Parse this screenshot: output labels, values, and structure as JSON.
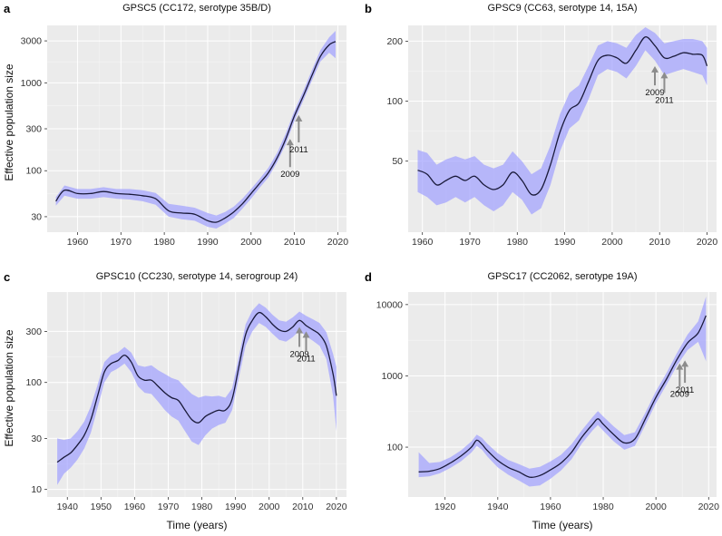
{
  "figure": {
    "shared_ylabel": "Effective population size",
    "shared_xlabel": "Time (years)"
  },
  "chart_data": [
    {
      "id": "a",
      "letter": "a",
      "type": "line",
      "title": "GPSC5 (CC172, serotype 35B/D)",
      "xlabel": "",
      "ylabel": "Effective population size",
      "yscale": "log",
      "xlim": [
        1953,
        2022
      ],
      "ylim": [
        20,
        4500
      ],
      "xticks": [
        1960,
        1970,
        1980,
        1990,
        2000,
        2010,
        2020
      ],
      "yticks": [
        30,
        100,
        300,
        1000,
        3000
      ],
      "ytick_labels": [
        "30",
        "100",
        "300",
        "1000",
        "3000"
      ],
      "x": [
        1955,
        1957,
        1960,
        1963,
        1966,
        1969,
        1972,
        1975,
        1978,
        1981,
        1984,
        1987,
        1990,
        1992,
        1994,
        1996,
        1998,
        2000,
        2002,
        2004,
        2006,
        2008,
        2010,
        2012,
        2014,
        2016,
        2018,
        2019.5
      ],
      "median": [
        45,
        60,
        55,
        55,
        58,
        55,
        54,
        52,
        48,
        35,
        33,
        32,
        27,
        26,
        29,
        34,
        42,
        55,
        72,
        95,
        140,
        230,
        420,
        700,
        1200,
        2000,
        2700,
        2950
      ],
      "lower": [
        40,
        52,
        48,
        48,
        50,
        48,
        47,
        45,
        41,
        30,
        28,
        27,
        23,
        22,
        25,
        29,
        37,
        48,
        64,
        84,
        125,
        200,
        370,
        620,
        1050,
        1750,
        2200,
        1900
      ],
      "upper": [
        50,
        68,
        62,
        62,
        65,
        62,
        62,
        60,
        56,
        42,
        40,
        38,
        33,
        31,
        34,
        39,
        48,
        62,
        81,
        108,
        160,
        265,
        480,
        800,
        1380,
        2350,
        3300,
        3900
      ],
      "annotations": [
        {
          "label": "2009",
          "year": 2009,
          "tip_value": 230,
          "tail_value": 110,
          "label_side": "below"
        },
        {
          "label": "2011",
          "year": 2011,
          "tip_value": 430,
          "tail_value": 210,
          "label_side": "below"
        }
      ]
    },
    {
      "id": "b",
      "letter": "b",
      "type": "line",
      "title": "GPSC9 (CC63, serotype 14, 15A)",
      "xlabel": "",
      "ylabel": "",
      "yscale": "log",
      "xlim": [
        1957,
        2022
      ],
      "ylim": [
        22,
        240
      ],
      "xticks": [
        1960,
        1970,
        1980,
        1990,
        2000,
        2010,
        2020
      ],
      "yticks": [
        50,
        100,
        200
      ],
      "ytick_labels": [
        "50",
        "100",
        "200"
      ],
      "x": [
        1959,
        1961,
        1963,
        1965,
        1967,
        1969,
        1971,
        1973,
        1975,
        1977,
        1979,
        1981,
        1983,
        1985,
        1987,
        1989,
        1991,
        1993,
        1995,
        1997,
        1999,
        2001,
        2003,
        2005,
        2007,
        2009,
        2011,
        2013,
        2015,
        2017,
        2019,
        2020
      ],
      "median": [
        45,
        43,
        38,
        40,
        42,
        40,
        42,
        38,
        36,
        38,
        44,
        40,
        34,
        36,
        48,
        70,
        90,
        98,
        125,
        160,
        170,
        165,
        155,
        180,
        210,
        190,
        165,
        168,
        175,
        172,
        170,
        150
      ],
      "lower": [
        35,
        33,
        30,
        31,
        33,
        31,
        33,
        30,
        28,
        30,
        35,
        32,
        27,
        29,
        38,
        56,
        73,
        80,
        102,
        135,
        145,
        140,
        130,
        150,
        180,
        160,
        135,
        140,
        145,
        140,
        135,
        120
      ],
      "upper": [
        57,
        55,
        48,
        51,
        53,
        51,
        53,
        48,
        46,
        48,
        56,
        50,
        43,
        46,
        60,
        86,
        110,
        120,
        150,
        190,
        200,
        195,
        185,
        215,
        235,
        220,
        195,
        200,
        205,
        205,
        200,
        185
      ],
      "annotations": [
        {
          "label": "2009",
          "year": 2009,
          "tip_value": 150,
          "tail_value": 120,
          "label_side": "below"
        },
        {
          "label": "2011",
          "year": 2011,
          "tip_value": 140,
          "tail_value": 110,
          "label_side": "below"
        }
      ]
    },
    {
      "id": "c",
      "letter": "c",
      "type": "line",
      "title": "GPSC10 (CC230, serotype 14, serogroup 24)",
      "xlabel": "Time (years)",
      "ylabel": "Effective population size",
      "yscale": "log",
      "xlim": [
        1934,
        2023
      ],
      "ylim": [
        8.5,
        700
      ],
      "xticks": [
        1940,
        1950,
        1960,
        1970,
        1980,
        1990,
        2000,
        2010,
        2020
      ],
      "yticks": [
        10,
        30,
        100,
        300
      ],
      "ytick_labels": [
        "10",
        "30",
        "100",
        "300"
      ],
      "x": [
        1937,
        1939,
        1941,
        1943,
        1945,
        1947,
        1949,
        1951,
        1953,
        1955,
        1957,
        1959,
        1961,
        1963,
        1965,
        1967,
        1969,
        1971,
        1973,
        1975,
        1977,
        1979,
        1981,
        1983,
        1985,
        1987,
        1989,
        1991,
        1993,
        1995,
        1997,
        1999,
        2001,
        2003,
        2005,
        2007,
        2009,
        2011,
        2013,
        2015,
        2017,
        2019,
        2020
      ],
      "median": [
        18,
        20,
        22,
        26,
        32,
        45,
        75,
        125,
        150,
        160,
        180,
        155,
        115,
        105,
        105,
        92,
        80,
        72,
        68,
        55,
        45,
        42,
        48,
        52,
        55,
        55,
        70,
        140,
        280,
        380,
        450,
        410,
        350,
        310,
        300,
        330,
        380,
        340,
        310,
        280,
        220,
        120,
        75
      ],
      "lower": [
        11,
        14,
        16,
        19,
        24,
        34,
        58,
        100,
        125,
        135,
        150,
        125,
        92,
        80,
        78,
        66,
        55,
        48,
        44,
        35,
        28,
        26,
        32,
        37,
        40,
        42,
        55,
        110,
        220,
        300,
        360,
        330,
        285,
        250,
        240,
        265,
        305,
        270,
        245,
        220,
        165,
        75,
        35
      ],
      "upper": [
        30,
        29,
        30,
        35,
        43,
        60,
        95,
        155,
        180,
        190,
        215,
        190,
        145,
        140,
        145,
        130,
        120,
        110,
        105,
        90,
        78,
        72,
        75,
        74,
        75,
        72,
        88,
        175,
        350,
        470,
        550,
        500,
        430,
        380,
        370,
        405,
        460,
        420,
        390,
        360,
        295,
        185,
        140
      ],
      "annotations": [
        {
          "label": "2009",
          "year": 2009,
          "tip_value": 330,
          "tail_value": 215,
          "label_side": "below"
        },
        {
          "label": "2011",
          "year": 2011,
          "tip_value": 300,
          "tail_value": 195,
          "label_side": "below"
        }
      ]
    },
    {
      "id": "d",
      "letter": "d",
      "type": "line",
      "title": "GPSC17 (CC2062, serotype 19A)",
      "xlabel": "Time (years)",
      "ylabel": "",
      "yscale": "log",
      "xlim": [
        1906,
        2023
      ],
      "ylim": [
        20,
        15000
      ],
      "xticks": [
        1920,
        1940,
        1960,
        1980,
        2000,
        2020
      ],
      "yticks": [
        100,
        1000,
        10000
      ],
      "ytick_labels": [
        "100",
        "1000",
        "10000"
      ],
      "x": [
        1910,
        1914,
        1918,
        1922,
        1926,
        1930,
        1932,
        1934,
        1936,
        1940,
        1944,
        1948,
        1952,
        1956,
        1960,
        1964,
        1968,
        1972,
        1976,
        1978,
        1980,
        1984,
        1988,
        1992,
        1996,
        2000,
        2004,
        2008,
        2012,
        2016,
        2019
      ],
      "median": [
        45,
        46,
        50,
        60,
        75,
        100,
        125,
        110,
        90,
        65,
        52,
        45,
        38,
        40,
        48,
        60,
        85,
        140,
        210,
        250,
        210,
        150,
        115,
        130,
        250,
        500,
        900,
        1700,
        2900,
        4000,
        7000
      ],
      "lower": [
        38,
        39,
        43,
        51,
        63,
        84,
        104,
        92,
        74,
        52,
        41,
        34,
        28,
        29,
        36,
        47,
        68,
        114,
        172,
        205,
        170,
        120,
        92,
        104,
        205,
        415,
        750,
        1400,
        2300,
        3000,
        1600
      ],
      "upper": [
        85,
        60,
        62,
        72,
        90,
        120,
        150,
        135,
        112,
        82,
        66,
        58,
        50,
        53,
        63,
        78,
        110,
        175,
        265,
        320,
        270,
        195,
        148,
        162,
        305,
        610,
        1100,
        2100,
        3800,
        5800,
        13000
      ],
      "annotations": [
        {
          "label": "2009",
          "year": 2009,
          "tip_value": 1500,
          "tail_value": 700,
          "label_side": "below"
        },
        {
          "label": "2011",
          "year": 2011,
          "tip_value": 1650,
          "tail_value": 800,
          "label_side": "below"
        }
      ]
    }
  ]
}
